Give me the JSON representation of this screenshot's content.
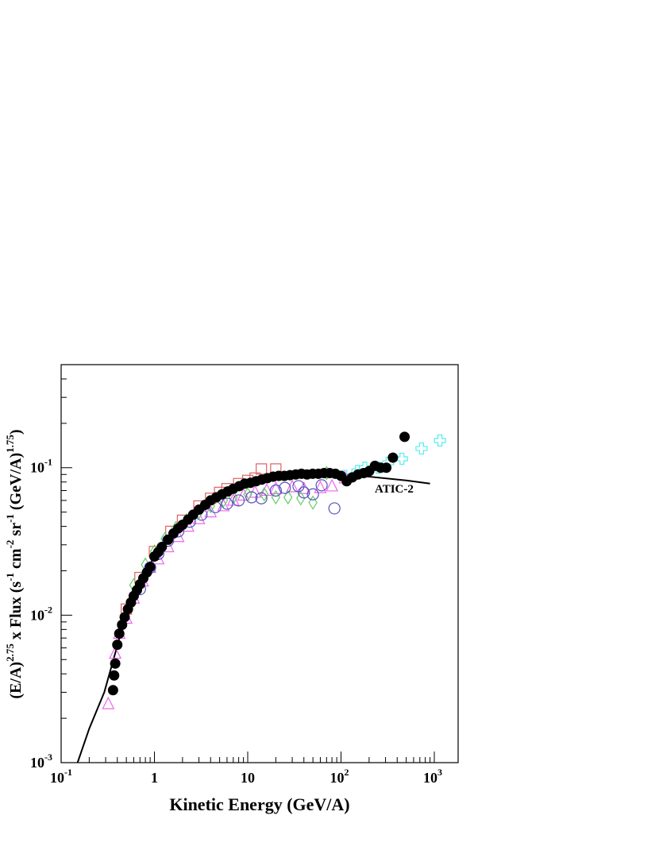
{
  "chart_data": {
    "type": "scatter",
    "xlabel": "Kinetic Energy (GeV/A)",
    "ylabel_parts": [
      "(E/A)",
      "2.75",
      " x Flux (s",
      "-1",
      " cm",
      "-2",
      " sr",
      "-1",
      " (GeV/A)",
      "1.75",
      ")"
    ],
    "annotation": {
      "text": "ATIC-2",
      "color": "#55eeee",
      "x": 230,
      "y": 0.068
    },
    "log_x": true,
    "log_y": true,
    "xlim": [
      0.1,
      1800
    ],
    "ylim": [
      0.001,
      0.5
    ],
    "xticks": [
      {
        "value": 0.1,
        "label": "10",
        "exponent": "-1"
      },
      1,
      10,
      {
        "value": 100,
        "label": "10",
        "exponent": "2"
      },
      {
        "value": 1000,
        "label": "10",
        "exponent": "3"
      }
    ],
    "yticks": [
      {
        "value": 0.001,
        "label": "10",
        "exponent": "-3"
      },
      {
        "value": 0.01,
        "label": "10",
        "exponent": "-2"
      },
      {
        "value": 0.1,
        "label": "10",
        "exponent": "-1"
      }
    ],
    "series": [
      {
        "marker": "line",
        "color": "#000000",
        "x": [
          0.15,
          0.2,
          0.29,
          0.4,
          0.5,
          0.7,
          1,
          2,
          5,
          10,
          20,
          50,
          100,
          200,
          500,
          900
        ],
        "values": [
          0.001,
          0.0017,
          0.003,
          0.0062,
          0.0105,
          0.0165,
          0.025,
          0.042,
          0.066,
          0.079,
          0.087,
          0.09,
          0.089,
          0.087,
          0.082,
          0.078
        ]
      },
      {
        "marker": "triangle",
        "color": "#ee66ee",
        "x": [
          0.32,
          0.38,
          0.42,
          0.5,
          0.6,
          0.75,
          0.9,
          1.1,
          1.4,
          1.8,
          2.3,
          3,
          4,
          5.5,
          7,
          9,
          12,
          16,
          20,
          30,
          40,
          60,
          80,
          110
        ],
        "values": [
          0.0025,
          0.0055,
          0.0075,
          0.0095,
          0.013,
          0.017,
          0.021,
          0.024,
          0.029,
          0.034,
          0.04,
          0.045,
          0.05,
          0.055,
          0.06,
          0.065,
          0.068,
          0.07,
          0.072,
          0.074,
          0.072,
          0.073,
          0.075,
          0.085
        ]
      },
      {
        "marker": "square",
        "color": "#e06060",
        "x": [
          0.5,
          0.7,
          1,
          1.5,
          2,
          3,
          4,
          5,
          6,
          8,
          10,
          12,
          14,
          20
        ],
        "values": [
          0.011,
          0.018,
          0.027,
          0.037,
          0.044,
          0.055,
          0.062,
          0.068,
          0.072,
          0.078,
          0.082,
          0.085,
          0.098,
          0.098
        ]
      },
      {
        "marker": "diamond",
        "color": "#66cc66",
        "x": [
          0.6,
          0.8,
          1,
          1.3,
          1.7,
          2.2,
          3,
          4,
          5.5,
          7,
          10,
          15,
          20,
          27,
          37,
          50,
          70
        ],
        "values": [
          0.016,
          0.022,
          0.027,
          0.033,
          0.039,
          0.044,
          0.05,
          0.055,
          0.06,
          0.063,
          0.066,
          0.066,
          0.063,
          0.063,
          0.062,
          0.058,
          0.092
        ]
      },
      {
        "marker": "circle",
        "color": "#5555bb",
        "x": [
          0.7,
          0.9,
          1.1,
          1.4,
          1.8,
          2.4,
          3.2,
          4.5,
          6,
          8,
          11,
          14,
          20,
          25,
          35,
          40,
          50,
          62,
          85
        ],
        "values": [
          0.015,
          0.021,
          0.026,
          0.032,
          0.037,
          0.043,
          0.048,
          0.054,
          0.057,
          0.06,
          0.063,
          0.062,
          0.07,
          0.073,
          0.075,
          0.068,
          0.066,
          0.076,
          0.053
        ]
      },
      {
        "marker": "cross",
        "color": "#55eeee",
        "x": [
          110,
          150,
          180,
          250,
          320,
          450,
          730,
          1150
        ],
        "values": [
          0.088,
          0.095,
          0.1,
          0.1,
          0.108,
          0.115,
          0.135,
          0.153
        ]
      },
      {
        "marker": "dot",
        "color": "#000000",
        "x": [
          0.36,
          0.37,
          0.38,
          0.4,
          0.42,
          0.45,
          0.48,
          0.52,
          0.56,
          0.6,
          0.65,
          0.7,
          0.76,
          0.83,
          0.9,
          1.0,
          1.1,
          1.2,
          1.4,
          1.6,
          1.8,
          2.0,
          2.3,
          2.6,
          3.0,
          3.5,
          4.0,
          4.6,
          5.3,
          6.1,
          7.0,
          8.1,
          9.3,
          10.7,
          12.3,
          14.1,
          16.2,
          18.7,
          21.5,
          24.7,
          28.4,
          32.7,
          37.6,
          43.2,
          49.7,
          57.2,
          65.8,
          75.6,
          87,
          100,
          115,
          132,
          152,
          175,
          201,
          231,
          266,
          306,
          360,
          480
        ],
        "values": [
          0.0031,
          0.0039,
          0.0047,
          0.0063,
          0.0075,
          0.0086,
          0.0097,
          0.011,
          0.0122,
          0.0135,
          0.0148,
          0.0162,
          0.0178,
          0.0195,
          0.0212,
          0.025,
          0.0268,
          0.029,
          0.0325,
          0.0358,
          0.0388,
          0.041,
          0.0445,
          0.048,
          0.052,
          0.056,
          0.06,
          0.063,
          0.066,
          0.069,
          0.072,
          0.075,
          0.078,
          0.079,
          0.081,
          0.083,
          0.085,
          0.087,
          0.088,
          0.088,
          0.089,
          0.09,
          0.091,
          0.09,
          0.091,
          0.091,
          0.092,
          0.092,
          0.091,
          0.088,
          0.081,
          0.086,
          0.09,
          0.092,
          0.095,
          0.103,
          0.1,
          0.1,
          0.117,
          0.162
        ]
      }
    ]
  }
}
